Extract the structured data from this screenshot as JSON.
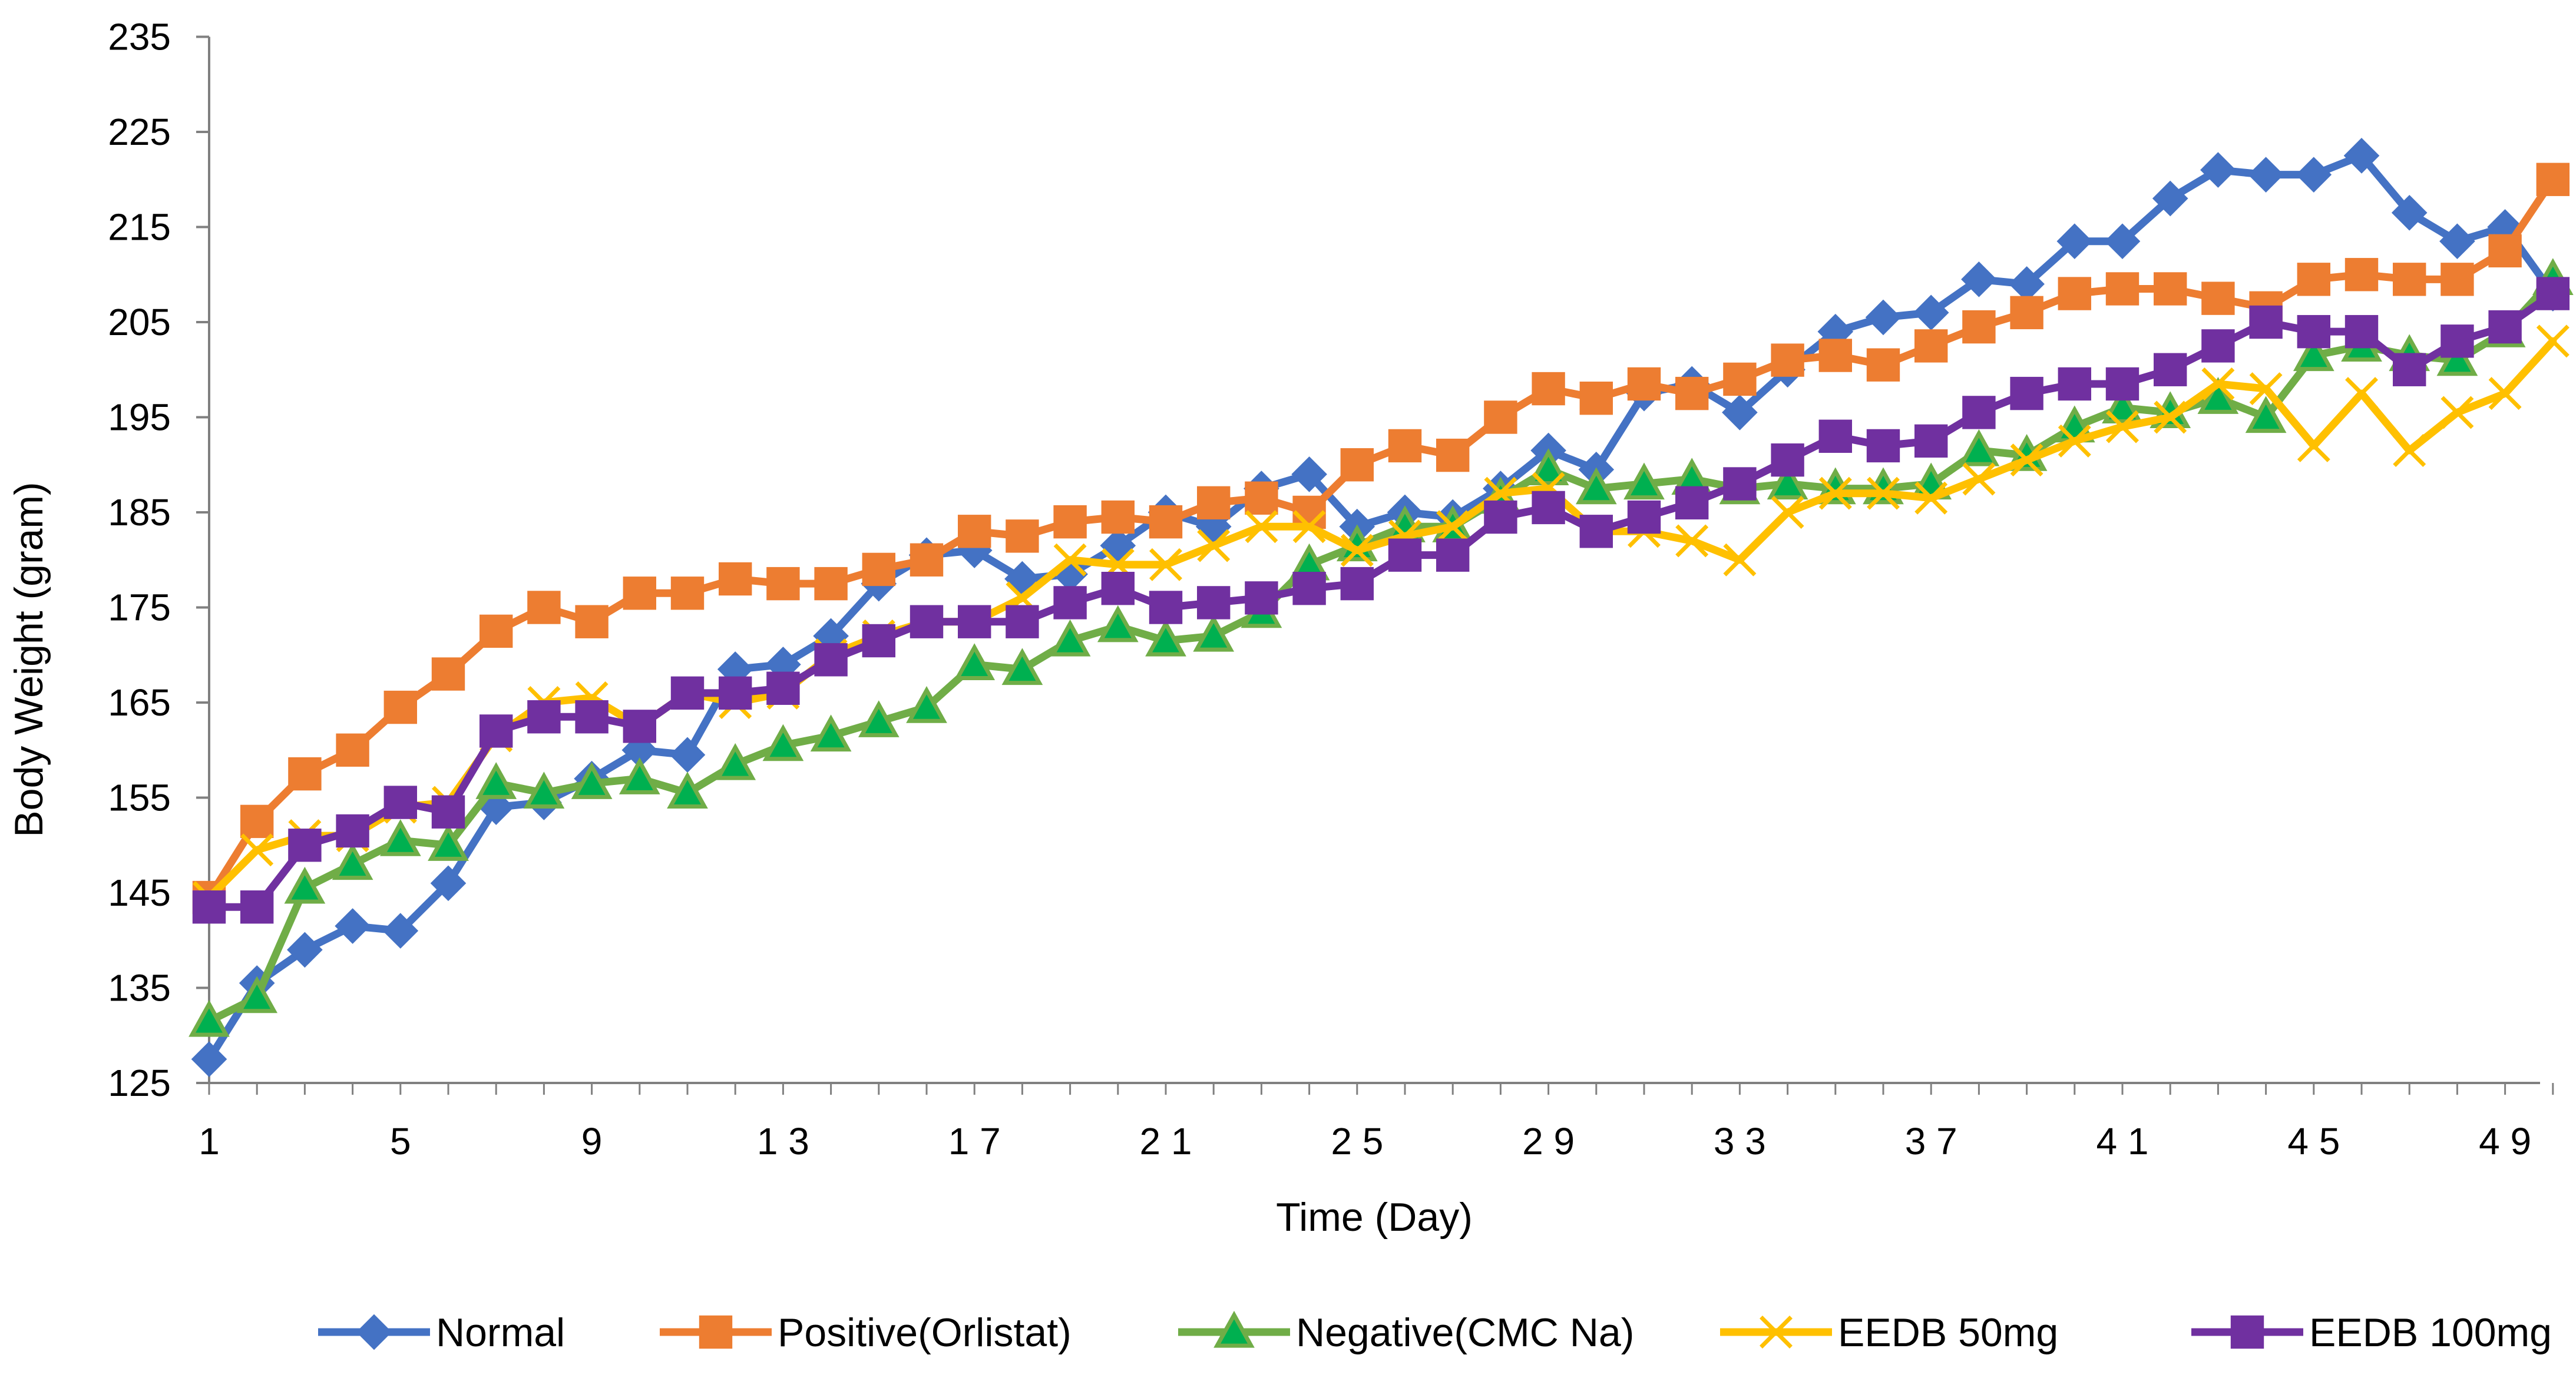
{
  "chart_data": {
    "type": "line",
    "title": "",
    "xlabel": "Time (Day)",
    "ylabel": "Body Weight (gram)",
    "xlim": [
      1,
      50
    ],
    "ylim": [
      125,
      235
    ],
    "yticks": [
      125,
      135,
      145,
      155,
      165,
      175,
      185,
      195,
      205,
      215,
      225,
      235
    ],
    "xticks": [
      1,
      5,
      9,
      13,
      17,
      21,
      25,
      29,
      33,
      37,
      41,
      45,
      49
    ],
    "legend_position": "bottom",
    "x": [
      1,
      2,
      3,
      4,
      5,
      6,
      7,
      8,
      9,
      10,
      11,
      12,
      13,
      14,
      15,
      16,
      17,
      18,
      19,
      20,
      21,
      22,
      23,
      24,
      25,
      26,
      27,
      28,
      29,
      30,
      31,
      32,
      33,
      34,
      35,
      36,
      37,
      38,
      39,
      40,
      41,
      42,
      43,
      44,
      45,
      46,
      47,
      48,
      49,
      50
    ],
    "series": [
      {
        "name": "Normal",
        "color": "#4472C4",
        "marker": "diamond",
        "values": [
          127.5,
          135.5,
          139,
          141.5,
          141,
          146,
          154,
          154.5,
          157,
          160,
          159.5,
          168.5,
          169,
          172,
          177.5,
          180.5,
          181,
          178,
          178.5,
          181.5,
          185,
          183.5,
          187.5,
          189,
          183.5,
          185,
          184.5,
          187.5,
          191.5,
          189.5,
          197.5,
          198.5,
          195.5,
          200,
          204,
          205.5,
          206,
          209.5,
          209,
          213.5,
          213.5,
          218,
          221,
          220.5,
          220.5,
          222.5,
          216.5,
          213.5,
          215,
          208
        ]
      },
      {
        "name": "Positive(Orlistat)",
        "color": "#ED7D31",
        "marker": "square",
        "values": [
          144.5,
          152.5,
          157.5,
          160,
          164.5,
          168,
          172.5,
          175,
          173.5,
          176.5,
          176.5,
          178,
          177.5,
          177.5,
          179,
          180,
          183,
          182.5,
          184,
          184.5,
          184,
          186,
          186.5,
          185,
          190,
          192,
          191,
          195,
          198,
          197,
          198.5,
          197.5,
          199,
          201,
          201.5,
          200.5,
          202.5,
          204.5,
          206,
          208,
          208.5,
          208.5,
          207.5,
          206.5,
          209.5,
          210,
          209.5,
          209.5,
          212.5,
          220
        ]
      },
      {
        "name": "Negative(CMC Na)",
        "color": "#70AD47",
        "marker": "triangle",
        "values": [
          131.5,
          134,
          145.5,
          148,
          150.5,
          150,
          156.5,
          155.5,
          156.5,
          157,
          155.5,
          158.5,
          160.5,
          161.5,
          163,
          164.5,
          169,
          168.5,
          171.5,
          173,
          171.5,
          172,
          174.5,
          179.5,
          181.5,
          183.5,
          183.5,
          186.5,
          189.5,
          187.5,
          188,
          188.5,
          187.5,
          188,
          187.5,
          187.5,
          188,
          191.5,
          191,
          194,
          196,
          195.5,
          197,
          195,
          201.5,
          202.5,
          201.5,
          201,
          204,
          209.5
        ]
      },
      {
        "name": "EEDB 50mg",
        "color": "#FFC000",
        "marker": "x",
        "values": [
          144.5,
          149.5,
          151,
          151,
          154,
          154.5,
          161.5,
          165,
          165.5,
          162.5,
          166,
          165,
          166,
          170,
          172,
          173.5,
          173.5,
          176,
          180,
          179.5,
          179.5,
          181.5,
          183.5,
          183.5,
          181,
          182.5,
          183.5,
          187,
          187.5,
          183,
          183,
          182,
          180,
          185,
          187,
          187,
          186.5,
          188.5,
          190.5,
          192.5,
          194,
          195,
          198.5,
          198,
          192,
          197.5,
          191.5,
          195.5,
          197.5,
          203
        ]
      },
      {
        "name": "EEDB 100mg",
        "color": "#7030A0",
        "marker": "square",
        "values": [
          143.5,
          143.5,
          150,
          151.5,
          154.5,
          153.5,
          162,
          163.5,
          163.5,
          162.5,
          166,
          166,
          166.5,
          169.5,
          171.5,
          173.5,
          173.5,
          173.5,
          175.5,
          177,
          175,
          175.5,
          176,
          177,
          177.5,
          180.5,
          180.5,
          184.5,
          185.5,
          183,
          184.5,
          186,
          188,
          190.5,
          193,
          192,
          192.5,
          195.5,
          197.5,
          198.5,
          198.5,
          200,
          202.5,
          205,
          204,
          204,
          200,
          203,
          204.5,
          208
        ]
      }
    ]
  }
}
